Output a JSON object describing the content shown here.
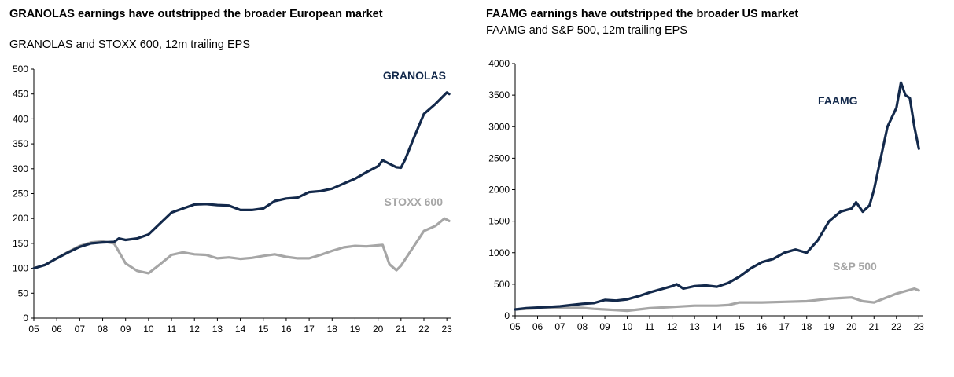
{
  "chart_data": [
    {
      "type": "line",
      "title": "GRANOLAS earnings have outstripped the broader European market",
      "subtitle": "GRANOLAS and STOXX 600, 12m trailing EPS",
      "xlabel": "",
      "ylabel": "",
      "xlim": [
        2005,
        2023.2
      ],
      "ylim": [
        0,
        500
      ],
      "x_ticks": [
        "05",
        "06",
        "07",
        "08",
        "09",
        "10",
        "11",
        "12",
        "13",
        "14",
        "15",
        "16",
        "17",
        "18",
        "19",
        "20",
        "21",
        "22",
        "23"
      ],
      "y_ticks": [
        0,
        50,
        100,
        150,
        200,
        250,
        300,
        350,
        400,
        450,
        500
      ],
      "grid": false,
      "legend": "inline labels",
      "series": [
        {
          "name": "GRANOLAS",
          "color": "#13294b",
          "x": [
            2005,
            2005.5,
            2006,
            2006.5,
            2007,
            2007.5,
            2008,
            2008.5,
            2008.7,
            2009,
            2009.5,
            2010,
            2010.5,
            2011,
            2011.5,
            2012,
            2012.5,
            2013,
            2013.5,
            2014,
            2014.5,
            2015,
            2015.5,
            2016,
            2016.5,
            2017,
            2017.5,
            2018,
            2018.5,
            2019,
            2019.5,
            2020,
            2020.2,
            2020.5,
            2020.8,
            2021,
            2021.2,
            2021.5,
            2022,
            2022.5,
            2023,
            2023.1
          ],
          "values": [
            100,
            107,
            120,
            132,
            143,
            150,
            152,
            153,
            160,
            157,
            160,
            168,
            190,
            212,
            220,
            228,
            229,
            227,
            226,
            217,
            217,
            220,
            235,
            240,
            242,
            253,
            255,
            260,
            270,
            280,
            293,
            305,
            317,
            310,
            303,
            302,
            320,
            355,
            410,
            430,
            453,
            450
          ]
        },
        {
          "name": "STOXX 600",
          "color": "#a6a6a6",
          "x": [
            2005,
            2005.5,
            2006,
            2006.5,
            2007,
            2007.5,
            2008,
            2008.5,
            2009,
            2009.5,
            2010,
            2010.5,
            2011,
            2011.5,
            2012,
            2012.5,
            2013,
            2013.5,
            2014,
            2014.5,
            2015,
            2015.5,
            2016,
            2016.5,
            2017,
            2017.5,
            2018,
            2018.5,
            2019,
            2019.5,
            2020,
            2020.2,
            2020.5,
            2020.8,
            2021,
            2021.5,
            2022,
            2022.5,
            2022.9,
            2023.1
          ],
          "values": [
            100,
            107,
            120,
            133,
            145,
            152,
            154,
            150,
            110,
            95,
            90,
            108,
            127,
            132,
            128,
            127,
            120,
            122,
            119,
            121,
            125,
            128,
            123,
            120,
            120,
            127,
            135,
            142,
            145,
            144,
            146,
            147,
            108,
            96,
            105,
            140,
            175,
            185,
            200,
            195
          ]
        }
      ],
      "annotations": [
        "GRANOLAS",
        "STOXX 600"
      ]
    },
    {
      "type": "line",
      "title": "FAAMG earnings have outstripped the broader US market",
      "subtitle": "FAAMG and S&P 500, 12m trailing EPS",
      "xlabel": "",
      "ylabel": "",
      "xlim": [
        2005,
        2023.2
      ],
      "ylim": [
        0,
        4000
      ],
      "x_ticks": [
        "05",
        "06",
        "07",
        "08",
        "09",
        "10",
        "11",
        "12",
        "13",
        "14",
        "15",
        "16",
        "17",
        "18",
        "19",
        "20",
        "21",
        "22",
        "23"
      ],
      "y_ticks": [
        0,
        500,
        1000,
        1500,
        2000,
        2500,
        3000,
        3500,
        4000
      ],
      "grid": false,
      "legend": "inline labels",
      "series": [
        {
          "name": "FAAMG",
          "color": "#13294b",
          "x": [
            2005,
            2005.5,
            2006,
            2006.5,
            2007,
            2007.5,
            2008,
            2008.5,
            2009,
            2009.5,
            2010,
            2010.5,
            2011,
            2011.5,
            2012,
            2012.2,
            2012.5,
            2013,
            2013.5,
            2014,
            2014.5,
            2015,
            2015.5,
            2016,
            2016.5,
            2017,
            2017.5,
            2018,
            2018.5,
            2019,
            2019.5,
            2020,
            2020.2,
            2020.5,
            2020.8,
            2021,
            2021.3,
            2021.6,
            2022,
            2022.2,
            2022.4,
            2022.6,
            2022.8,
            2023.0
          ],
          "values": [
            100,
            120,
            130,
            140,
            150,
            170,
            190,
            200,
            250,
            240,
            260,
            310,
            370,
            420,
            470,
            500,
            430,
            470,
            480,
            460,
            520,
            620,
            750,
            850,
            900,
            1000,
            1050,
            1000,
            1200,
            1500,
            1650,
            1700,
            1800,
            1650,
            1750,
            2000,
            2500,
            3000,
            3300,
            3700,
            3500,
            3450,
            3000,
            2650
          ]
        },
        {
          "name": "S&P 500",
          "color": "#a6a6a6",
          "x": [
            2005,
            2006,
            2007,
            2008,
            2008.5,
            2009,
            2009.5,
            2010,
            2011,
            2012,
            2013,
            2014,
            2014.5,
            2015,
            2016,
            2017,
            2018,
            2019,
            2019.5,
            2020,
            2020.5,
            2021,
            2021.5,
            2022,
            2022.5,
            2022.8,
            2023.0
          ],
          "values": [
            100,
            120,
            130,
            125,
            110,
            100,
            90,
            80,
            120,
            140,
            160,
            160,
            170,
            210,
            210,
            220,
            230,
            270,
            280,
            290,
            230,
            210,
            280,
            350,
            400,
            430,
            400
          ]
        }
      ],
      "annotations": [
        "FAAMG",
        "S&P 500"
      ]
    }
  ]
}
